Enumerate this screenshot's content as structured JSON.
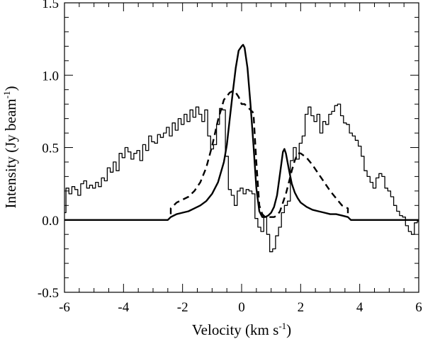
{
  "chart_data": {
    "type": "line",
    "title": "",
    "xlabel": "Velocity (km s",
    "xlabel_sup": "-1",
    "xlabel_suffix": ")",
    "ylabel": "Intensity (Jy beam",
    "ylabel_sup": "-1",
    "ylabel_suffix": ")",
    "xlim": [
      -6,
      6
    ],
    "ylim": [
      -0.5,
      1.5
    ],
    "x_ticks": [
      -6,
      -4,
      -2,
      0,
      2,
      4,
      6
    ],
    "x_tick_labels": [
      "-6",
      "-4",
      "-2",
      "0",
      "2",
      "4",
      "6"
    ],
    "y_ticks": [
      -0.5,
      0.0,
      0.5,
      1.0,
      1.5
    ],
    "y_tick_labels": [
      "-0.5",
      "0.0",
      "0.5",
      "1.0",
      "1.5"
    ],
    "grid": false,
    "legend": "none",
    "series": [
      {
        "style": "histogram",
        "color": "#000000",
        "x": [
          -6.0,
          -5.9,
          -5.8,
          -5.7,
          -5.6,
          -5.5,
          -5.4,
          -5.3,
          -5.2,
          -5.1,
          -5.0,
          -4.9,
          -4.8,
          -4.7,
          -4.6,
          -4.5,
          -4.4,
          -4.3,
          -4.2,
          -4.1,
          -4.0,
          -3.9,
          -3.8,
          -3.7,
          -3.6,
          -3.5,
          -3.4,
          -3.3,
          -3.2,
          -3.1,
          -3.0,
          -2.9,
          -2.8,
          -2.7,
          -2.6,
          -2.5,
          -2.4,
          -2.3,
          -2.2,
          -2.1,
          -2.0,
          -1.9,
          -1.8,
          -1.7,
          -1.6,
          -1.5,
          -1.4,
          -1.3,
          -1.2,
          -1.1,
          -1.0,
          -0.9,
          -0.8,
          -0.7,
          -0.6,
          -0.5,
          -0.4,
          -0.3,
          -0.2,
          -0.1,
          0.0,
          0.1,
          0.2,
          0.3,
          0.4,
          0.5,
          0.6,
          0.7,
          0.8,
          0.9,
          1.0,
          1.1,
          1.2,
          1.3,
          1.4,
          1.5,
          1.6,
          1.7,
          1.8,
          1.9,
          2.0,
          2.1,
          2.2,
          2.3,
          2.4,
          2.5,
          2.6,
          2.7,
          2.8,
          2.9,
          3.0,
          3.1,
          3.2,
          3.3,
          3.4,
          3.5,
          3.6,
          3.7,
          3.8,
          3.9,
          4.0,
          4.1,
          4.2,
          4.3,
          4.4,
          4.5,
          4.6,
          4.7,
          4.8,
          4.9,
          5.0,
          5.1,
          5.2,
          5.3,
          5.4,
          5.5,
          5.6,
          5.7,
          5.8,
          5.9,
          6.0
        ],
        "y": [
          0.05,
          0.22,
          0.18,
          0.23,
          0.21,
          0.17,
          0.25,
          0.27,
          0.22,
          0.24,
          0.22,
          0.26,
          0.23,
          0.29,
          0.27,
          0.36,
          0.33,
          0.4,
          0.34,
          0.46,
          0.43,
          0.5,
          0.47,
          0.42,
          0.46,
          0.48,
          0.41,
          0.52,
          0.48,
          0.58,
          0.54,
          0.53,
          0.59,
          0.57,
          0.6,
          0.64,
          0.58,
          0.67,
          0.62,
          0.7,
          0.66,
          0.73,
          0.68,
          0.76,
          0.71,
          0.78,
          0.73,
          0.68,
          0.76,
          0.58,
          0.49,
          0.52,
          0.66,
          0.77,
          0.76,
          0.44,
          0.21,
          0.17,
          0.1,
          0.2,
          0.22,
          0.18,
          0.21,
          0.2,
          0.18,
          0.01,
          -0.05,
          -0.08,
          0.02,
          -0.1,
          -0.22,
          -0.2,
          -0.11,
          -0.05,
          0.05,
          0.1,
          0.13,
          0.41,
          0.5,
          0.42,
          0.53,
          0.58,
          0.73,
          0.78,
          0.72,
          0.68,
          0.73,
          0.6,
          0.68,
          0.66,
          0.73,
          0.75,
          0.79,
          0.8,
          0.72,
          0.67,
          0.66,
          0.6,
          0.58,
          0.55,
          0.51,
          0.44,
          0.34,
          0.3,
          0.26,
          0.22,
          0.29,
          0.32,
          0.3,
          0.22,
          0.2,
          0.16,
          0.1,
          0.06,
          0.03,
          0.02,
          -0.04,
          -0.08,
          -0.1,
          -0.02,
          -0.01
        ]
      },
      {
        "style": "solid",
        "color": "#000000",
        "x": [
          -6.0,
          -5.0,
          -4.0,
          -3.0,
          -2.5,
          -2.4,
          -2.2,
          -2.0,
          -1.8,
          -1.6,
          -1.4,
          -1.2,
          -1.0,
          -0.8,
          -0.6,
          -0.5,
          -0.4,
          -0.3,
          -0.2,
          -0.1,
          0.0,
          0.05,
          0.1,
          0.2,
          0.3,
          0.4,
          0.5,
          0.6,
          0.7,
          0.8,
          0.9,
          1.0,
          1.1,
          1.2,
          1.3,
          1.4,
          1.45,
          1.5,
          1.6,
          1.7,
          1.8,
          1.9,
          2.0,
          2.2,
          2.4,
          2.6,
          2.8,
          3.0,
          3.2,
          3.4,
          3.6,
          3.7,
          4.0,
          5.0,
          6.0
        ],
        "y": [
          0.0,
          0.0,
          0.0,
          0.0,
          0.0,
          0.02,
          0.04,
          0.05,
          0.06,
          0.08,
          0.1,
          0.13,
          0.18,
          0.26,
          0.4,
          0.52,
          0.7,
          0.88,
          1.05,
          1.17,
          1.2,
          1.21,
          1.19,
          1.05,
          0.8,
          0.52,
          0.22,
          0.06,
          0.02,
          0.02,
          0.03,
          0.05,
          0.09,
          0.17,
          0.32,
          0.47,
          0.49,
          0.46,
          0.35,
          0.25,
          0.19,
          0.15,
          0.12,
          0.09,
          0.07,
          0.06,
          0.05,
          0.04,
          0.04,
          0.03,
          0.02,
          0.0,
          0.0,
          0.0,
          0.0
        ]
      },
      {
        "style": "dashed",
        "color": "#000000",
        "x": [
          -2.4,
          -2.4,
          -2.2,
          -2.0,
          -1.8,
          -1.6,
          -1.4,
          -1.2,
          -1.0,
          -0.8,
          -0.6,
          -0.4,
          -0.3,
          -0.2,
          -0.1,
          0.0,
          0.1,
          0.2,
          0.3,
          0.4,
          0.5,
          0.6,
          0.7,
          0.8,
          0.9,
          1.0,
          1.1,
          1.2,
          1.3,
          1.4,
          1.5,
          1.6,
          1.7,
          1.8,
          1.9,
          2.0,
          2.2,
          2.4,
          2.6,
          2.8,
          3.0,
          3.2,
          3.4,
          3.5,
          3.6,
          3.6
        ],
        "y": [
          0.04,
          0.08,
          0.12,
          0.14,
          0.16,
          0.2,
          0.26,
          0.36,
          0.51,
          0.69,
          0.83,
          0.88,
          0.89,
          0.88,
          0.85,
          0.8,
          0.8,
          0.78,
          0.76,
          0.74,
          0.4,
          0.1,
          0.04,
          0.02,
          0.02,
          0.02,
          0.02,
          0.03,
          0.06,
          0.12,
          0.18,
          0.26,
          0.34,
          0.41,
          0.46,
          0.46,
          0.43,
          0.38,
          0.32,
          0.26,
          0.2,
          0.15,
          0.1,
          0.09,
          0.08,
          0.02
        ]
      }
    ]
  }
}
